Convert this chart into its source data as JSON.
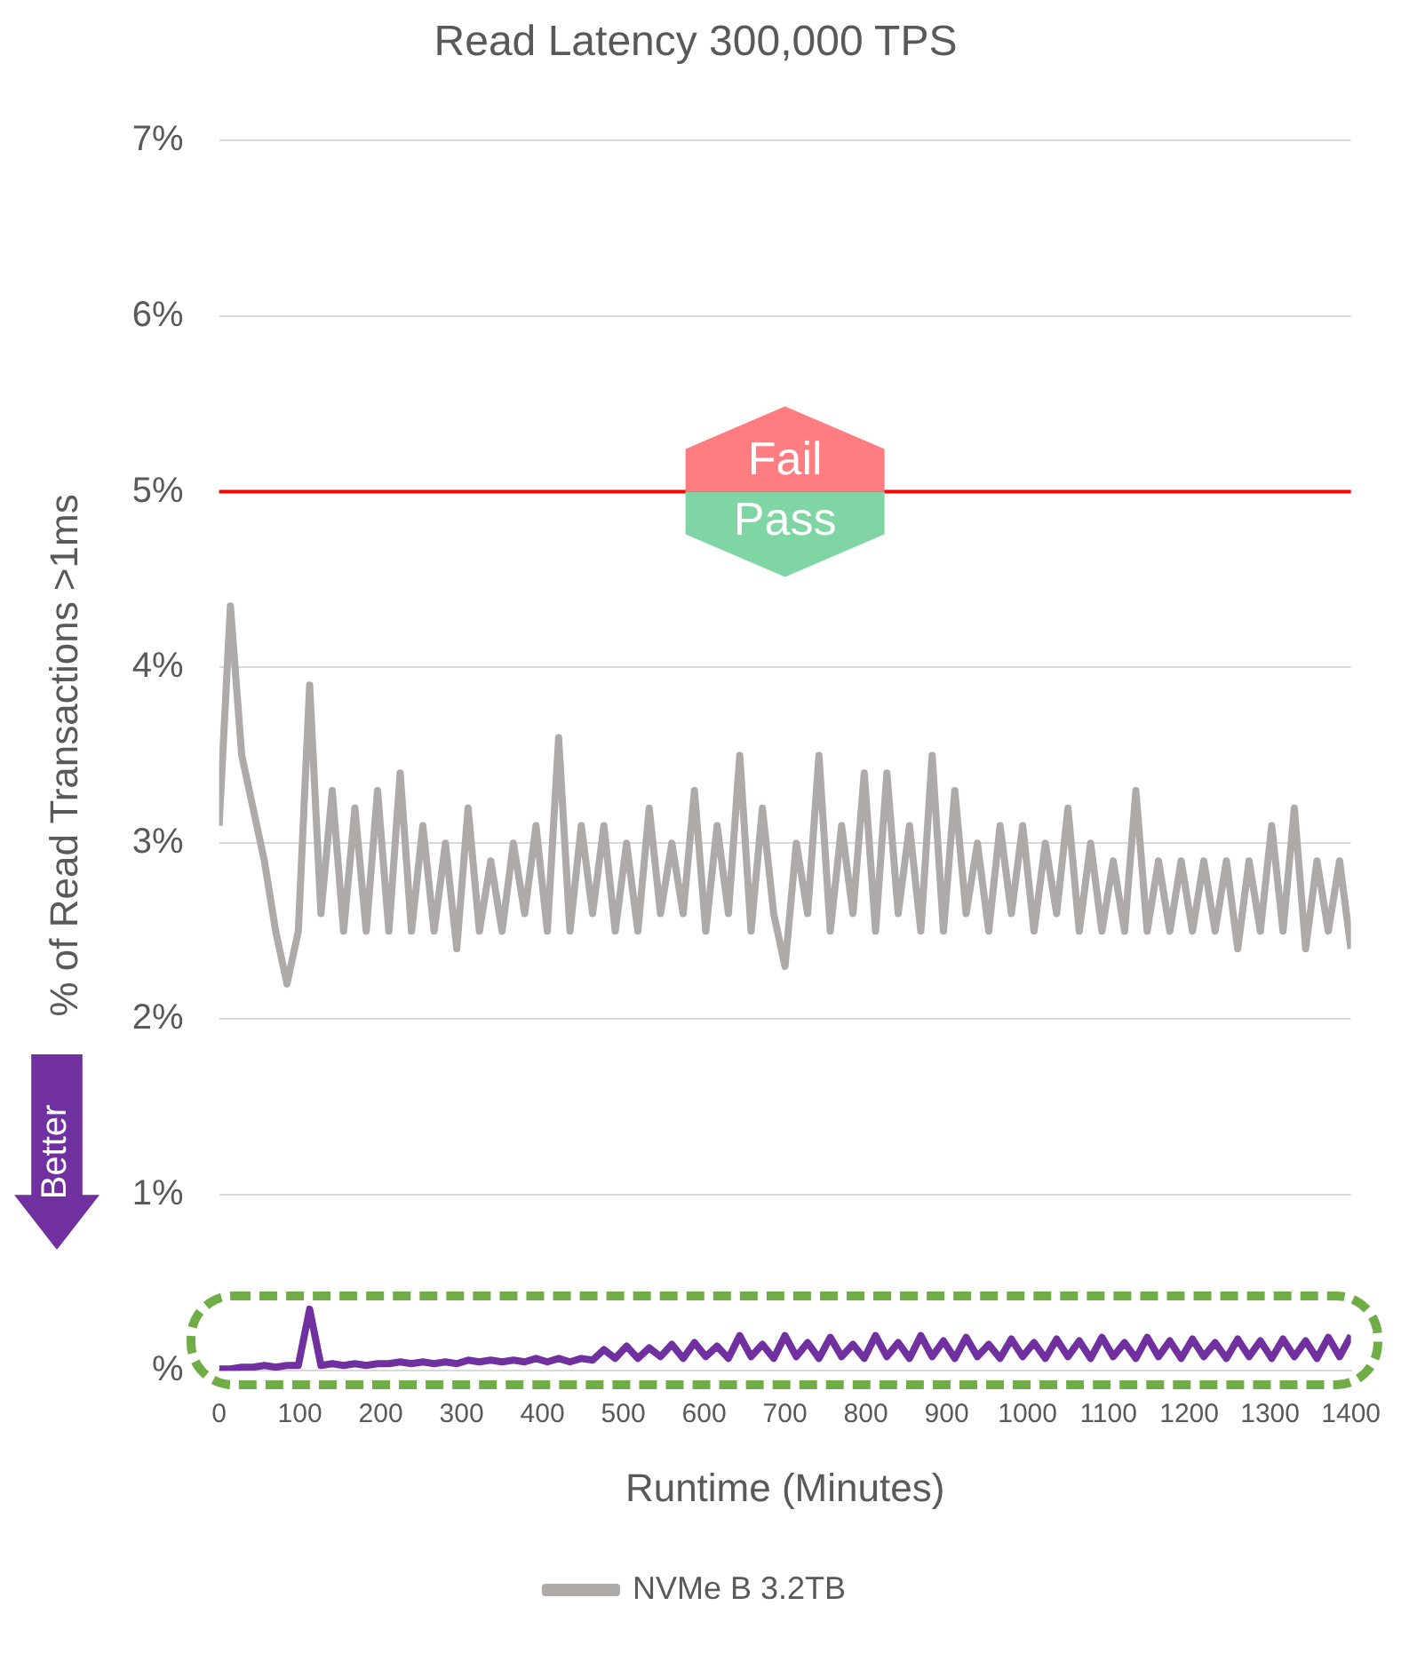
{
  "chart_data": {
    "type": "line",
    "title": "Read Latency 300,000 TPS",
    "xlabel": "Runtime (Minutes)",
    "ylabel": "% of Read Transactions >1ms",
    "x": [
      0,
      14,
      28,
      42,
      56,
      70,
      84,
      98,
      112,
      126,
      140,
      154,
      168,
      182,
      196,
      210,
      224,
      238,
      252,
      266,
      280,
      294,
      308,
      322,
      336,
      350,
      364,
      378,
      392,
      406,
      420,
      434,
      448,
      462,
      476,
      490,
      504,
      518,
      532,
      546,
      560,
      574,
      588,
      602,
      616,
      630,
      644,
      658,
      672,
      686,
      700,
      714,
      728,
      742,
      756,
      770,
      784,
      798,
      812,
      826,
      840,
      854,
      868,
      882,
      896,
      910,
      924,
      938,
      952,
      966,
      980,
      994,
      1008,
      1022,
      1036,
      1050,
      1064,
      1078,
      1092,
      1106,
      1120,
      1134,
      1148,
      1162,
      1176,
      1190,
      1204,
      1218,
      1232,
      1246,
      1260,
      1274,
      1288,
      1302,
      1316,
      1330,
      1344,
      1358,
      1372,
      1386,
      1400
    ],
    "series": [
      {
        "name": "NVMe B 3.2TB",
        "color": "#aeaaaa",
        "values": [
          3.1,
          4.35,
          3.5,
          3.2,
          2.9,
          2.5,
          2.2,
          2.5,
          3.9,
          2.6,
          3.3,
          2.5,
          3.2,
          2.5,
          3.3,
          2.5,
          3.4,
          2.5,
          3.1,
          2.5,
          3.0,
          2.4,
          3.2,
          2.5,
          2.9,
          2.5,
          3.0,
          2.6,
          3.1,
          2.5,
          3.6,
          2.5,
          3.1,
          2.6,
          3.1,
          2.5,
          3.0,
          2.5,
          3.2,
          2.6,
          3.0,
          2.6,
          3.3,
          2.5,
          3.1,
          2.6,
          3.5,
          2.5,
          3.2,
          2.6,
          2.3,
          3.0,
          2.6,
          3.5,
          2.5,
          3.1,
          2.6,
          3.4,
          2.5,
          3.4,
          2.6,
          3.1,
          2.5,
          3.5,
          2.5,
          3.3,
          2.6,
          3.0,
          2.5,
          3.1,
          2.6,
          3.1,
          2.5,
          3.0,
          2.6,
          3.2,
          2.5,
          3.0,
          2.5,
          2.9,
          2.5,
          3.3,
          2.5,
          2.9,
          2.5,
          2.9,
          2.5,
          2.9,
          2.5,
          2.9,
          2.4,
          2.9,
          2.5,
          3.1,
          2.5,
          3.2,
          2.4,
          2.9,
          2.5,
          2.9,
          2.4
        ]
      },
      {
        "color": "#7030a0",
        "values": [
          0.01,
          0.01,
          0.02,
          0.02,
          0.03,
          0.02,
          0.03,
          0.03,
          0.35,
          0.03,
          0.04,
          0.03,
          0.04,
          0.03,
          0.04,
          0.04,
          0.05,
          0.04,
          0.05,
          0.04,
          0.05,
          0.04,
          0.06,
          0.05,
          0.06,
          0.05,
          0.06,
          0.05,
          0.07,
          0.05,
          0.07,
          0.05,
          0.07,
          0.06,
          0.12,
          0.07,
          0.14,
          0.07,
          0.13,
          0.08,
          0.15,
          0.07,
          0.16,
          0.08,
          0.14,
          0.07,
          0.2,
          0.08,
          0.15,
          0.07,
          0.2,
          0.08,
          0.16,
          0.07,
          0.19,
          0.08,
          0.15,
          0.07,
          0.2,
          0.08,
          0.16,
          0.07,
          0.2,
          0.08,
          0.17,
          0.07,
          0.19,
          0.08,
          0.15,
          0.07,
          0.18,
          0.08,
          0.16,
          0.07,
          0.18,
          0.08,
          0.17,
          0.07,
          0.19,
          0.08,
          0.16,
          0.07,
          0.19,
          0.08,
          0.17,
          0.07,
          0.18,
          0.08,
          0.16,
          0.07,
          0.18,
          0.08,
          0.17,
          0.07,
          0.18,
          0.08,
          0.17,
          0.07,
          0.19,
          0.08,
          0.2
        ]
      }
    ],
    "xlim": [
      0,
      1400
    ],
    "xticks": [
      0,
      100,
      200,
      300,
      400,
      500,
      600,
      700,
      800,
      900,
      1000,
      1100,
      1200,
      1300,
      1400
    ],
    "ylim": [
      0,
      7
    ],
    "yticks": [
      {
        "value": 0,
        "label": "%"
      },
      {
        "value": 1,
        "label": "1%"
      },
      {
        "value": 2,
        "label": "2%"
      },
      {
        "value": 3,
        "label": "3%"
      },
      {
        "value": 4,
        "label": "4%"
      },
      {
        "value": 5,
        "label": "5%"
      },
      {
        "value": 6,
        "label": "6%"
      },
      {
        "value": 7,
        "label": "7%"
      }
    ],
    "ref_lines": [
      {
        "axis": "y",
        "value": 5,
        "color": "#ff0000"
      }
    ],
    "annotations": [
      {
        "text": "Fail",
        "x": 700,
        "y": 5
      },
      {
        "text": "Pass",
        "x": 700,
        "y": 5
      },
      "Better"
    ],
    "grid": "y",
    "legend": "bottom",
    "marker": "none",
    "line_style": "solid"
  }
}
